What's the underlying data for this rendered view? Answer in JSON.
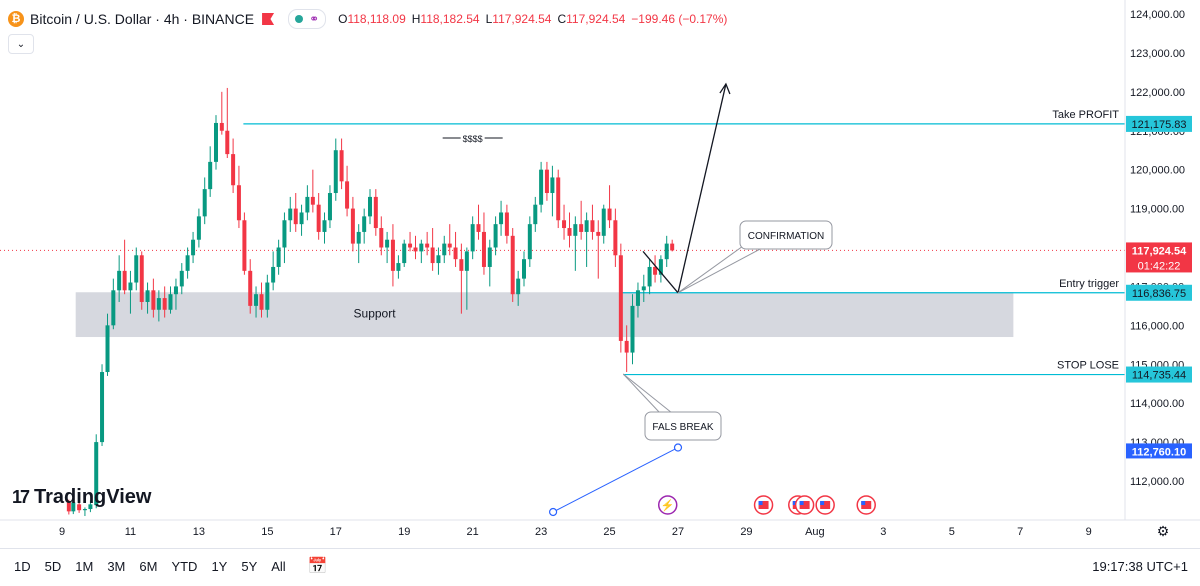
{
  "header": {
    "symbol_title": "Bitcoin / U.S. Dollar · 4h · BINANCE",
    "coin_glyph": "₿",
    "ohlc": {
      "open_label": "O",
      "open": "118,118.09",
      "high_label": "H",
      "high": "118,182.54",
      "low_label": "L",
      "low": "117,924.54",
      "close_label": "C",
      "close": "117,924.54",
      "change": "−199.46 (−0.17%)"
    },
    "colors": {
      "down": "#f23645",
      "up": "#089981"
    }
  },
  "collapse_glyph": "⌄",
  "branding": {
    "logo_mark": "17",
    "logo_text": "TradingView"
  },
  "bottom_bar": {
    "timeframes": [
      "1D",
      "5D",
      "1M",
      "3M",
      "6M",
      "YTD",
      "1Y",
      "5Y",
      "All"
    ],
    "time": "19:17:38 UTC+1"
  },
  "chart_data": {
    "type": "candlestick",
    "symbol": "BTCUSD",
    "interval": "4h",
    "ylim": [
      111200,
      124200
    ],
    "y_ticks": [
      "124,000.00",
      "123,000.00",
      "122,000.00",
      "121,000.00",
      "120,000.00",
      "119,000.00",
      "118,000.00",
      "117,000.00",
      "116,000.00",
      "115,000.00",
      "114,000.00",
      "113,000.00",
      "112,000.00"
    ],
    "y_tick_values": [
      124000,
      123000,
      122000,
      121000,
      120000,
      119000,
      118000,
      117000,
      116000,
      115000,
      114000,
      113000,
      112000
    ],
    "x_ticks": [
      "9",
      "11",
      "13",
      "15",
      "17",
      "19",
      "21",
      "23",
      "25",
      "27",
      "29",
      "Aug",
      "3",
      "5",
      "7",
      "9"
    ],
    "x_tick_days": [
      9,
      11,
      13,
      15,
      17,
      19,
      21,
      23,
      25,
      27,
      29,
      31,
      33,
      35,
      37,
      39
    ],
    "current_price": {
      "value": 117924.54,
      "label": "117,924.54",
      "countdown": "01:42:22"
    },
    "levels": [
      {
        "name": "Take PROFIT",
        "value": 121175.83,
        "label": "121,175.83",
        "from_day": 14.3
      },
      {
        "name": "Entry trigger",
        "value": 116836.75,
        "label": "116,836.75",
        "from_day": 25.3
      },
      {
        "name": "STOP LOSE",
        "value": 114735.44,
        "label": "114,735.44",
        "from_day": 25.4
      }
    ],
    "extra_price_label": {
      "value": 112760.1,
      "label": "112,760.10"
    },
    "zone": {
      "name": "Support",
      "from_day": 9.4,
      "to_day": 36.8,
      "low": 115700,
      "high": 116850
    },
    "annotations": [
      {
        "text": "CONFIRMATION",
        "day": 27.0,
        "price": 116836
      },
      {
        "text": "FALS BREAK",
        "day": 25.4,
        "price": 114750
      },
      {
        "text": "$$$$",
        "day": 21.0,
        "price": 121000
      }
    ],
    "projection": {
      "from": {
        "day": 27.0,
        "price": 116836
      },
      "to": {
        "day": 28.4,
        "price": 122200
      }
    },
    "trend_line": [
      {
        "day": 23.35,
        "price": 111200
      },
      {
        "day": 27.0,
        "price": 112860
      }
    ],
    "event_icons": {
      "flash_day": 26.7,
      "flag_days": [
        29.5,
        30.5,
        30.7,
        31.3,
        32.5
      ],
      "price": 111400
    },
    "candles": [
      [
        9.2,
        111480,
        111520,
        111140,
        111220
      ],
      [
        9.33,
        111220,
        111480,
        111150,
        111450
      ],
      [
        9.5,
        111400,
        111550,
        111180,
        111250
      ],
      [
        9.67,
        111250,
        111320,
        111100,
        111280
      ],
      [
        9.83,
        111280,
        111500,
        111200,
        111400
      ],
      [
        10.0,
        111380,
        113200,
        111300,
        113000
      ],
      [
        10.17,
        113000,
        115000,
        112900,
        114800
      ],
      [
        10.33,
        114800,
        116300,
        114700,
        116000
      ],
      [
        10.5,
        116000,
        117200,
        115900,
        116900
      ],
      [
        10.67,
        116900,
        117800,
        116600,
        117400
      ],
      [
        10.83,
        117400,
        118200,
        116800,
        116900
      ],
      [
        11.0,
        116900,
        117400,
        116300,
        117100
      ],
      [
        11.17,
        117100,
        118000,
        116900,
        117800
      ],
      [
        11.33,
        117800,
        117900,
        116400,
        116600
      ],
      [
        11.5,
        116600,
        117100,
        116300,
        116900
      ],
      [
        11.67,
        116900,
        117200,
        116200,
        116400
      ],
      [
        11.83,
        116400,
        116900,
        116100,
        116700
      ],
      [
        12.0,
        116700,
        117000,
        116200,
        116400
      ],
      [
        12.17,
        116400,
        117000,
        116300,
        116800
      ],
      [
        12.33,
        116800,
        117200,
        116400,
        117000
      ],
      [
        12.5,
        117000,
        117600,
        116800,
        117400
      ],
      [
        12.67,
        117400,
        118000,
        117200,
        117800
      ],
      [
        12.83,
        117800,
        118400,
        117600,
        118200
      ],
      [
        13.0,
        118200,
        119000,
        118000,
        118800
      ],
      [
        13.17,
        118800,
        119800,
        118600,
        119500
      ],
      [
        13.33,
        119500,
        120600,
        119300,
        120200
      ],
      [
        13.5,
        120200,
        121400,
        120000,
        121200
      ],
      [
        13.67,
        121200,
        122000,
        120900,
        121000
      ],
      [
        13.83,
        121000,
        122100,
        120300,
        120400
      ],
      [
        14.0,
        120400,
        120800,
        119400,
        119600
      ],
      [
        14.17,
        119600,
        120100,
        118500,
        118700
      ],
      [
        14.33,
        118700,
        118900,
        117300,
        117400
      ],
      [
        14.5,
        117400,
        117700,
        116300,
        116500
      ],
      [
        14.67,
        116500,
        117000,
        116200,
        116800
      ],
      [
        14.83,
        116800,
        117100,
        116200,
        116400
      ],
      [
        15.0,
        116400,
        117300,
        116200,
        117100
      ],
      [
        15.17,
        117100,
        117900,
        116900,
        117500
      ],
      [
        15.33,
        117500,
        118200,
        117300,
        118000
      ],
      [
        15.5,
        118000,
        118900,
        117600,
        118700
      ],
      [
        15.67,
        118700,
        119300,
        118400,
        119000
      ],
      [
        15.83,
        119000,
        119400,
        118400,
        118600
      ],
      [
        16.0,
        118600,
        119100,
        118300,
        118900
      ],
      [
        16.17,
        118900,
        119600,
        118700,
        119300
      ],
      [
        16.33,
        119300,
        120000,
        118900,
        119100
      ],
      [
        16.5,
        119100,
        119400,
        118200,
        118400
      ],
      [
        16.67,
        118400,
        118900,
        118100,
        118700
      ],
      [
        16.83,
        118700,
        119600,
        118500,
        119400
      ],
      [
        17.0,
        119400,
        120800,
        119200,
        120500
      ],
      [
        17.17,
        120500,
        120800,
        119500,
        119700
      ],
      [
        17.33,
        119700,
        120100,
        118800,
        119000
      ],
      [
        17.5,
        119000,
        119300,
        117900,
        118100
      ],
      [
        17.67,
        118100,
        118600,
        117600,
        118400
      ],
      [
        17.83,
        118400,
        119000,
        118100,
        118800
      ],
      [
        18.0,
        118800,
        119500,
        118600,
        119300
      ],
      [
        18.17,
        119300,
        119500,
        118300,
        118500
      ],
      [
        18.33,
        118500,
        118800,
        117800,
        118000
      ],
      [
        18.5,
        118000,
        118400,
        117600,
        118200
      ],
      [
        18.67,
        118200,
        118600,
        117000,
        117400
      ],
      [
        18.83,
        117400,
        117800,
        117200,
        117600
      ],
      [
        19.0,
        117600,
        118200,
        117500,
        118100
      ],
      [
        19.17,
        118100,
        118400,
        117900,
        118000
      ],
      [
        19.33,
        118000,
        118300,
        117700,
        117900
      ],
      [
        19.5,
        117900,
        118200,
        117600,
        118100
      ],
      [
        19.67,
        118100,
        118400,
        117800,
        118000
      ],
      [
        19.83,
        118000,
        118500,
        117400,
        117600
      ],
      [
        20.0,
        117600,
        118000,
        117300,
        117800
      ],
      [
        20.17,
        117800,
        118300,
        117600,
        118100
      ],
      [
        20.33,
        118100,
        118600,
        117800,
        118000
      ],
      [
        20.5,
        118000,
        118400,
        117500,
        117700
      ],
      [
        20.67,
        117700,
        118100,
        116300,
        117400
      ],
      [
        20.83,
        117400,
        118000,
        116400,
        117900
      ],
      [
        21.0,
        117900,
        118800,
        117700,
        118600
      ],
      [
        21.17,
        118600,
        119100,
        118200,
        118400
      ],
      [
        21.33,
        118400,
        118900,
        117300,
        117500
      ],
      [
        21.5,
        117500,
        118200,
        117000,
        118000
      ],
      [
        21.67,
        118000,
        118800,
        117800,
        118600
      ],
      [
        21.83,
        118600,
        119200,
        118300,
        118900
      ],
      [
        22.0,
        118900,
        119100,
        118100,
        118300
      ],
      [
        22.17,
        118300,
        118500,
        116600,
        116800
      ],
      [
        22.33,
        116800,
        117400,
        116500,
        117200
      ],
      [
        22.5,
        117200,
        117900,
        117000,
        117700
      ],
      [
        22.67,
        117700,
        118800,
        117500,
        118600
      ],
      [
        22.83,
        118600,
        119300,
        118400,
        119100
      ],
      [
        23.0,
        119100,
        120200,
        118900,
        120000
      ],
      [
        23.17,
        120000,
        120200,
        119200,
        119400
      ],
      [
        23.33,
        119400,
        120100,
        118800,
        119800
      ],
      [
        23.5,
        119800,
        120000,
        118500,
        118700
      ],
      [
        23.67,
        118700,
        119100,
        118200,
        118500
      ],
      [
        23.83,
        118500,
        118900,
        118000,
        118300
      ],
      [
        24.0,
        118300,
        118800,
        117400,
        118600
      ],
      [
        24.17,
        118600,
        119200,
        118200,
        118400
      ],
      [
        24.33,
        118400,
        118900,
        117500,
        118700
      ],
      [
        24.5,
        118700,
        119100,
        118200,
        118400
      ],
      [
        24.67,
        118400,
        118700,
        117200,
        118300
      ],
      [
        24.83,
        118300,
        119100,
        118100,
        119000
      ],
      [
        25.0,
        119000,
        119600,
        118500,
        118700
      ],
      [
        25.17,
        118700,
        119000,
        117500,
        117800
      ],
      [
        25.33,
        117800,
        118100,
        115300,
        115600
      ],
      [
        25.5,
        115600,
        116000,
        114800,
        115300
      ],
      [
        25.67,
        115300,
        116800,
        115000,
        116500
      ],
      [
        25.83,
        116500,
        117100,
        116200,
        116900
      ],
      [
        26.0,
        116900,
        117300,
        116600,
        117000
      ],
      [
        26.17,
        117000,
        117700,
        116800,
        117500
      ],
      [
        26.33,
        117500,
        117800,
        117100,
        117300
      ],
      [
        26.5,
        117300,
        117800,
        117100,
        117700
      ],
      [
        26.67,
        117700,
        118300,
        117500,
        118100
      ],
      [
        26.83,
        118100,
        118200,
        117900,
        117925
      ]
    ]
  }
}
